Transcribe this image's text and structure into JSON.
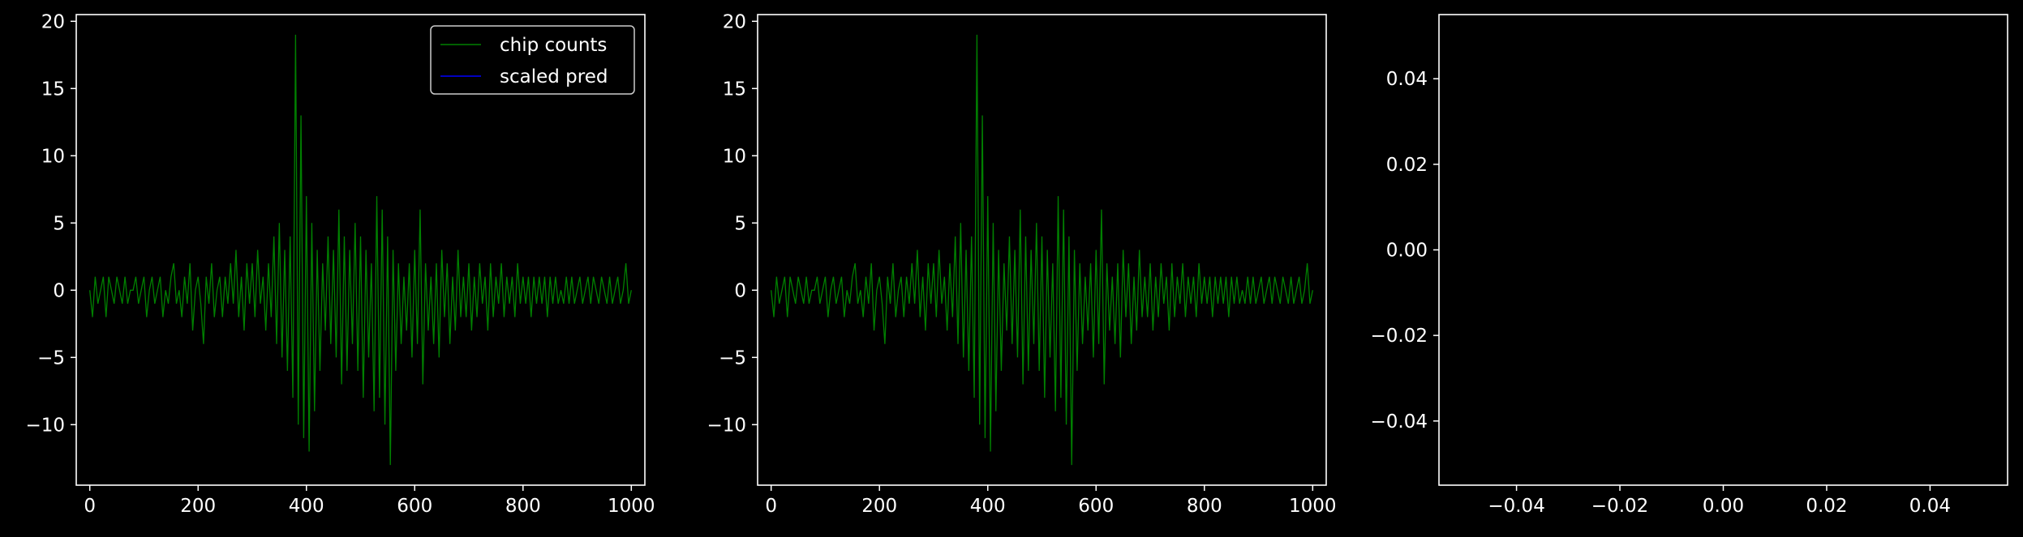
{
  "figure": {
    "background": "#000000",
    "foreground": "#ffffff"
  },
  "chart_data": [
    {
      "type": "line",
      "subplot": 1,
      "xlim": [
        -25,
        1025
      ],
      "ylim": [
        -14.5,
        20.5
      ],
      "xticks": [
        "0",
        "200",
        "400",
        "600",
        "800",
        "1000"
      ],
      "yticks": [
        "−10",
        "−5",
        "0",
        "5",
        "10",
        "15",
        "20"
      ],
      "legend": {
        "position": "top-right",
        "entries": [
          "chip counts",
          "scaled pred"
        ]
      },
      "series": [
        {
          "name": "chip counts",
          "color": "#008000",
          "source": "chip_counts"
        },
        {
          "name": "scaled pred",
          "color": "#0000ff",
          "values": []
        }
      ]
    },
    {
      "type": "line",
      "subplot": 2,
      "xlim": [
        -25,
        1025
      ],
      "ylim": [
        -14.5,
        20.5
      ],
      "xticks": [
        "0",
        "200",
        "400",
        "600",
        "800",
        "1000"
      ],
      "yticks": [
        "−10",
        "−5",
        "0",
        "5",
        "10",
        "15",
        "20"
      ],
      "series": [
        {
          "color": "#008000",
          "source": "chip_counts"
        }
      ]
    },
    {
      "type": "line",
      "subplot": 3,
      "xlim": [
        -0.055,
        0.055
      ],
      "ylim": [
        -0.055,
        0.055
      ],
      "xticks": [
        "−0.04",
        "−0.02",
        "0.00",
        "0.02",
        "0.04"
      ],
      "yticks": [
        "−0.04",
        "−0.02",
        "0.00",
        "0.02",
        "0.04"
      ],
      "series": []
    }
  ],
  "chip_counts": {
    "x_start": 0,
    "x_step": 5,
    "values": [
      0,
      -2,
      1,
      -1,
      0,
      1,
      -2,
      1,
      0,
      -1,
      1,
      0,
      -1,
      1,
      -1,
      0,
      0,
      1,
      -1,
      0,
      1,
      -2,
      0,
      1,
      -1,
      0,
      1,
      -2,
      0,
      -1,
      1,
      2,
      -1,
      0,
      -2,
      1,
      -1,
      2,
      -3,
      0,
      1,
      -1,
      -4,
      1,
      -1,
      2,
      -2,
      0,
      1,
      -2,
      1,
      -1,
      2,
      -1,
      3,
      -2,
      1,
      -3,
      2,
      -1,
      2,
      -2,
      3,
      -1,
      1,
      -3,
      2,
      -2,
      4,
      -4,
      5,
      -5,
      3,
      -6,
      4,
      -8,
      19,
      -10,
      13,
      -11,
      7,
      -12,
      5,
      -9,
      3,
      -6,
      2,
      -3,
      4,
      -4,
      3,
      -5,
      6,
      -7,
      4,
      -6,
      3,
      -4,
      5,
      -6,
      4,
      -8,
      3,
      -5,
      2,
      -9,
      7,
      -8,
      6,
      -10,
      4,
      -13,
      3,
      -6,
      2,
      -4,
      1,
      -3,
      2,
      -5,
      3,
      -4,
      6,
      -7,
      2,
      -3,
      1,
      -4,
      2,
      -5,
      3,
      -2,
      2,
      -4,
      1,
      -3,
      3,
      -2,
      1,
      -2,
      2,
      -3,
      1,
      -2,
      2,
      -1,
      1,
      -3,
      2,
      -2,
      1,
      -1,
      2,
      -2,
      1,
      -1,
      1,
      -2,
      2,
      -1,
      1,
      -1,
      1,
      -2,
      1,
      -1,
      1,
      -1,
      1,
      -2,
      1,
      -1,
      1,
      -1,
      0,
      -1,
      1,
      -1,
      1,
      -1,
      0,
      1,
      -1,
      0,
      1,
      -1,
      1,
      0,
      -1,
      1,
      0,
      -1,
      1,
      -1,
      0,
      1,
      -1,
      0,
      2,
      -1,
      0
    ]
  }
}
